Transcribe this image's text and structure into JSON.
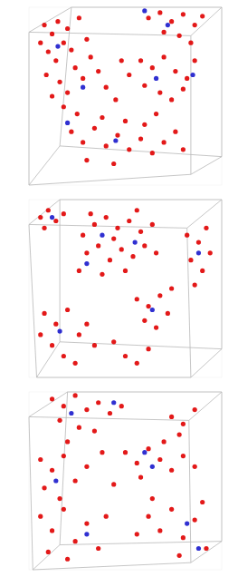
{
  "chart_data": [
    {
      "type": "scatter",
      "xlim": [
        0,
        100
      ],
      "ylim": [
        0,
        100
      ],
      "tick_labels": false,
      "marker": "circle",
      "series": [
        {
          "color": "#e00000",
          "x": [
            8,
            12,
            15,
            18,
            10,
            14,
            20,
            22,
            9,
            16,
            24,
            12,
            20,
            28,
            30,
            26,
            6,
            18,
            25,
            32,
            62,
            68,
            74,
            80,
            86,
            90,
            70,
            78,
            84,
            58,
            64,
            70,
            76,
            82,
            60,
            68,
            74,
            80,
            86,
            52,
            22,
            28,
            34,
            40,
            46,
            52,
            58,
            64,
            70,
            76,
            30,
            44,
            60,
            38,
            50,
            80,
            66,
            40,
            45,
            36,
            48
          ],
          "values": [
            90,
            85,
            92,
            80,
            75,
            70,
            88,
            76,
            62,
            58,
            66,
            50,
            52,
            60,
            82,
            94,
            80,
            44,
            40,
            72,
            94,
            97,
            92,
            96,
            90,
            95,
            86,
            84,
            80,
            70,
            66,
            72,
            64,
            60,
            56,
            52,
            48,
            54,
            70,
            62,
            30,
            24,
            32,
            22,
            28,
            20,
            26,
            18,
            24,
            30,
            14,
            12,
            34,
            38,
            36,
            20,
            40,
            55,
            48,
            64,
            70
          ]
        },
        {
          "color": "#1a1acc",
          "x": [
            15,
            28,
            72,
            66,
            45,
            85,
            60,
            20
          ],
          "values": [
            78,
            55,
            90,
            60,
            25,
            62,
            98,
            35
          ]
        }
      ]
    },
    {
      "type": "scatter",
      "xlim": [
        0,
        100
      ],
      "ylim": [
        0,
        100
      ],
      "tick_labels": false,
      "marker": "circle",
      "series": [
        {
          "color": "#e00000",
          "x": [
            6,
            10,
            14,
            18,
            8,
            28,
            34,
            40,
            46,
            52,
            58,
            64,
            30,
            36,
            42,
            48,
            54,
            60,
            26,
            38,
            44,
            50,
            66,
            32,
            56,
            82,
            88,
            92,
            84,
            90,
            86,
            94,
            56,
            62,
            68,
            72,
            60,
            66,
            74,
            8,
            14,
            20,
            26,
            12,
            18,
            30,
            24,
            34,
            6,
            50,
            56,
            62,
            44
          ],
          "values": [
            90,
            94,
            88,
            92,
            84,
            80,
            86,
            90,
            84,
            88,
            82,
            86,
            70,
            74,
            66,
            72,
            68,
            74,
            60,
            58,
            78,
            60,
            70,
            92,
            94,
            80,
            76,
            84,
            66,
            60,
            52,
            70,
            44,
            40,
            46,
            36,
            32,
            28,
            50,
            36,
            30,
            38,
            24,
            18,
            12,
            30,
            8,
            18,
            24,
            12,
            8,
            16,
            20
          ]
        },
        {
          "color": "#1a1acc",
          "x": [
            38,
            55,
            88,
            64,
            16,
            12,
            30
          ],
          "values": [
            80,
            76,
            70,
            38,
            26,
            90,
            64
          ]
        }
      ]
    },
    {
      "type": "scatter",
      "xlim": [
        0,
        100
      ],
      "ylim": [
        0,
        100
      ],
      "tick_labels": false,
      "marker": "circle",
      "series": [
        {
          "color": "#e00000",
          "x": [
            12,
            18,
            24,
            30,
            36,
            42,
            48,
            16,
            26,
            34,
            20,
            6,
            12,
            18,
            24,
            8,
            30,
            16,
            50,
            56,
            62,
            68,
            74,
            80,
            58,
            70,
            86,
            74,
            80,
            86,
            78,
            6,
            12,
            18,
            24,
            30,
            36,
            10,
            40,
            20,
            62,
            68,
            74,
            80,
            86,
            92,
            64,
            78,
            90,
            56,
            44,
            38
          ],
          "values": [
            96,
            92,
            98,
            90,
            94,
            88,
            92,
            84,
            80,
            78,
            72,
            62,
            56,
            64,
            50,
            46,
            58,
            40,
            66,
            60,
            68,
            62,
            56,
            64,
            52,
            72,
            58,
            86,
            82,
            90,
            76,
            30,
            22,
            34,
            16,
            26,
            12,
            10,
            30,
            6,
            30,
            22,
            34,
            18,
            28,
            12,
            40,
            8,
            38,
            20,
            48,
            66
          ]
        },
        {
          "color": "#1a1acc",
          "x": [
            22,
            14,
            64,
            30,
            82,
            44,
            88,
            60
          ],
          "values": [
            88,
            50,
            58,
            20,
            26,
            94,
            12,
            66
          ]
        }
      ]
    }
  ]
}
